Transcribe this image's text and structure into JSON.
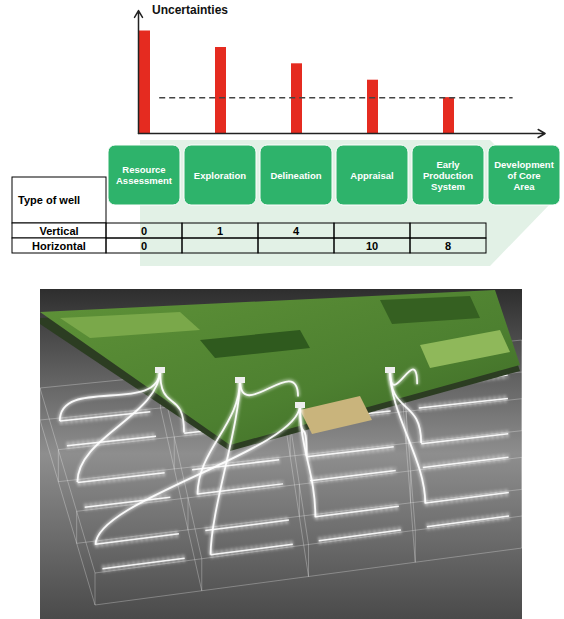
{
  "chart_data": {
    "type": "bar",
    "y_label": "Uncertainties",
    "categories": [
      "Resource Assessment",
      "Exploration",
      "Delineation",
      "Appraisal",
      "Early Production System",
      "Development of Core Area"
    ],
    "values": [
      100,
      84,
      68,
      52,
      35,
      null
    ],
    "color": "#e52b20",
    "reference_line": {
      "value": 35,
      "line_style": "dashed"
    },
    "ylim": [
      0,
      120
    ],
    "yticks": [],
    "tick_labels": false
  },
  "table": {
    "header": "Type of well",
    "rows": [
      {
        "label": "Vertical",
        "values": [
          0,
          1,
          4,
          null,
          null
        ]
      },
      {
        "label": "Horizontal",
        "values": [
          0,
          null,
          null,
          10,
          8
        ]
      }
    ]
  }
}
